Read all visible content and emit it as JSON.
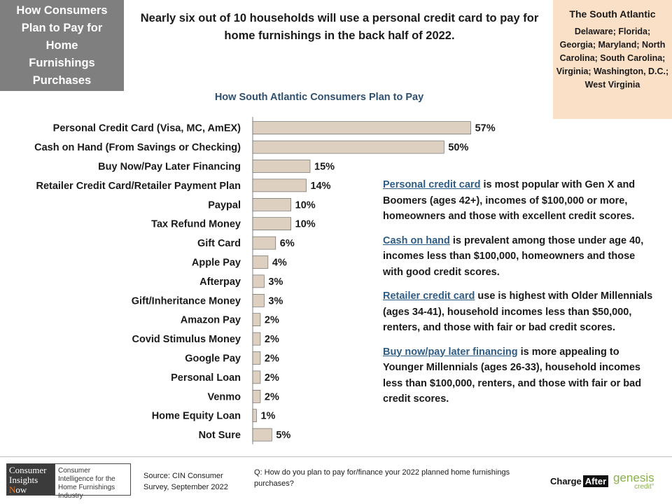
{
  "corner_title": [
    "How Consumers",
    "Plan to Pay for",
    "Home",
    "Furnishings",
    "Purchases"
  ],
  "headline": "Nearly six out of 10 households  will use a personal credit card to pay for home furnishings in the back half of 2022.",
  "region": {
    "title": "The South Atlantic",
    "states": "Delaware; Florida; Georgia; Maryland; North Carolina; South Carolina; Virginia; Washington, D.C.; West Virginia"
  },
  "chart_data": {
    "type": "bar",
    "orientation": "horizontal",
    "title": "How South Atlantic Consumers Plan to Pay",
    "categories": [
      "Personal Credit Card (Visa, MC, AmEX)",
      "Cash on Hand (From Savings or Checking)",
      "Buy Now/Pay Later Financing",
      "Retailer Credit Card/Retailer Payment Plan",
      "Paypal",
      "Tax Refund Money",
      "Gift Card",
      "Apple Pay",
      "Afterpay",
      "Gift/Inheritance Money",
      "Amazon Pay",
      "Covid Stimulus Money",
      "Google Pay",
      "Personal Loan",
      "Venmo",
      "Home Equity Loan",
      "Not Sure"
    ],
    "values": [
      57,
      50,
      15,
      14,
      10,
      10,
      6,
      4,
      3,
      3,
      2,
      2,
      2,
      2,
      2,
      1,
      5
    ],
    "value_labels": [
      "57%",
      "50%",
      "15%",
      "14%",
      "10%",
      "10%",
      "6%",
      "4%",
      "3%",
      "3%",
      "2%",
      "2%",
      "2%",
      "2%",
      "2%",
      "1%",
      "5%"
    ],
    "unit": "%",
    "xlim": [
      0,
      60
    ],
    "grid": false,
    "bar_color": "#ddd0c0"
  },
  "insights": [
    {
      "highlight": "Personal credit card",
      "text": " is most popular with Gen X and Boomers (ages 42+), incomes of $100,000 or more, homeowners and those with excellent credit scores."
    },
    {
      "highlight": "Cash on hand",
      "text": " is prevalent among those under age 40, incomes less than $100,000, homeowners and those with good credit scores."
    },
    {
      "highlight": "Retailer credit card",
      "text": " use is highest with Older Millennials (ages 34-41), household incomes less than $50,000, renters, and those with fair or bad credit scores."
    },
    {
      "highlight": "Buy now/pay later financing",
      "text": " is more appealing to Younger Millennials (ages 26-33), household incomes less than $100,000, renters, and those with fair or bad credit scores."
    }
  ],
  "footer": {
    "logo_cin": {
      "line1": "Consumer",
      "line2": "Insights",
      "n_letter": "N",
      "n_rest": "ow",
      "tagline": "Consumer Intelligence for the Home Furnishings Industry"
    },
    "source": "Source: CIN Consumer Survey, September  2022",
    "question": "Q: How do you plan to pay for/finance your 2022 planned home furnishings purchases?",
    "logo_chargeafter": {
      "part1": "Charge",
      "part2": "After"
    },
    "logo_genesis": {
      "line1": "genesis",
      "line2": "credit°"
    }
  }
}
